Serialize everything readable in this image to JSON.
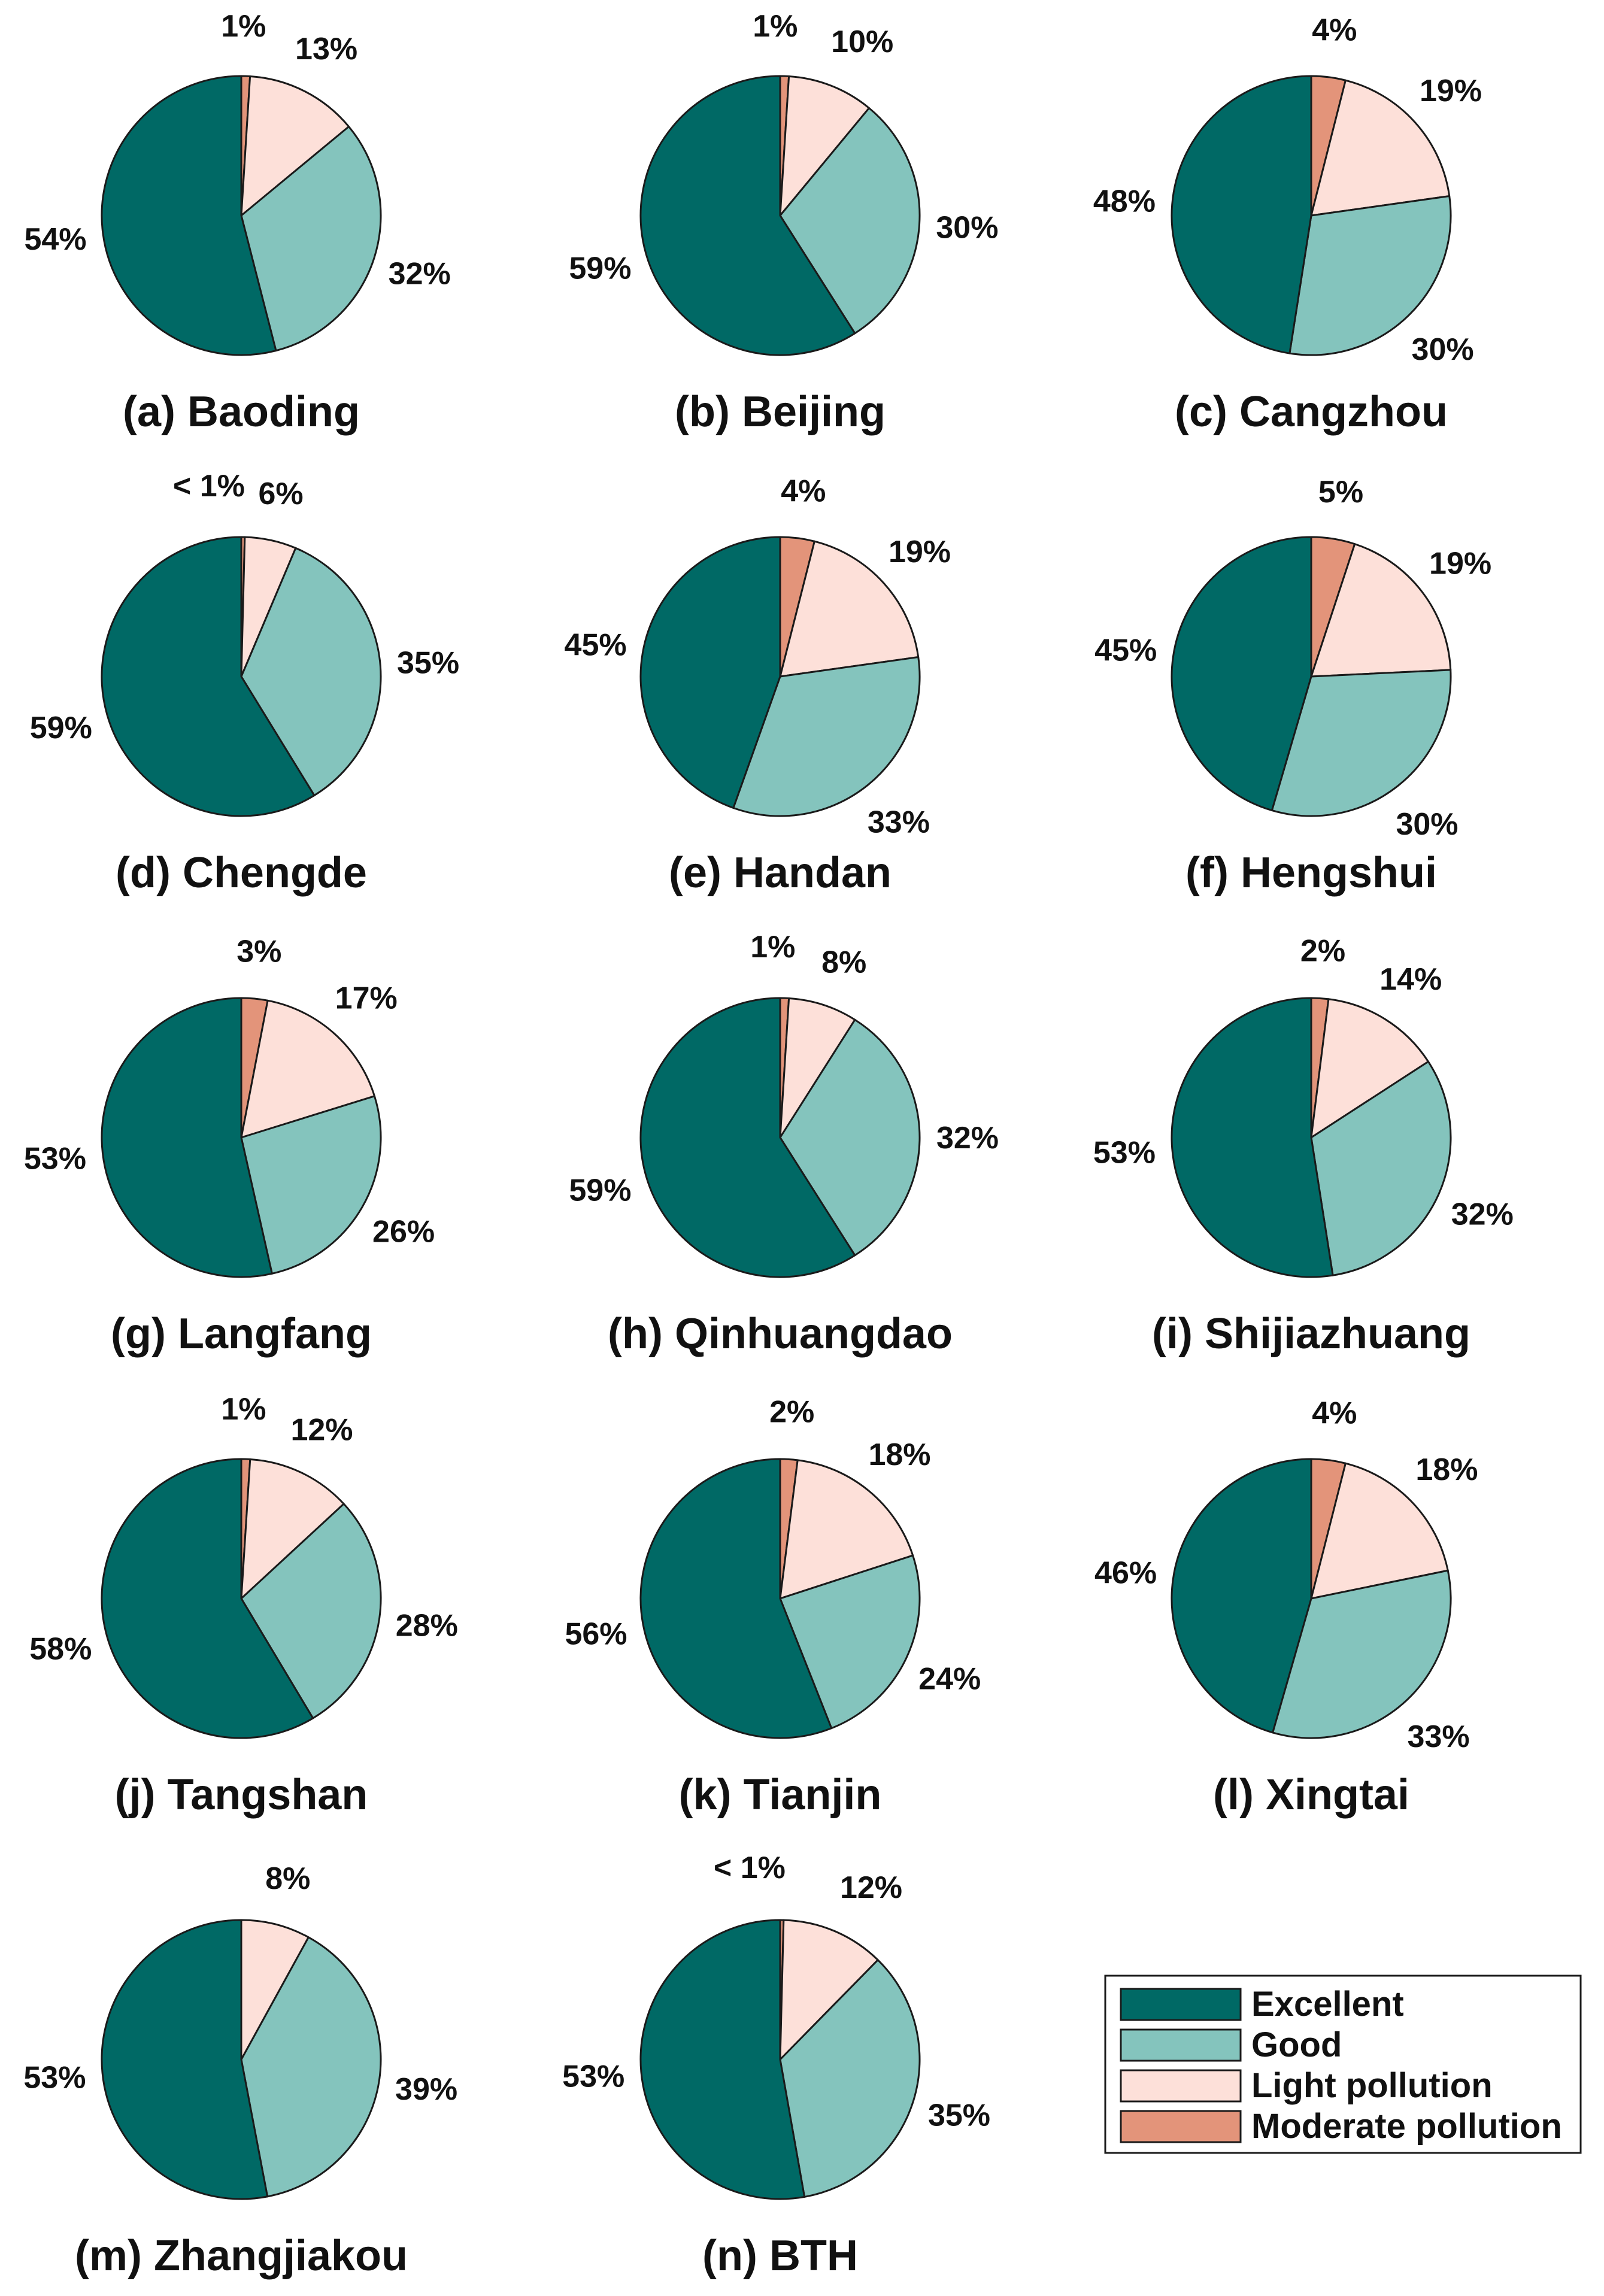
{
  "colors": {
    "excellent": "#006965",
    "good": "#84c4bd",
    "light_pollution": "#fde0d9",
    "moderate_pollution": "#e3947a",
    "outline": "#1a1a1a"
  },
  "legend": {
    "position": "bottom-right",
    "items": [
      {
        "label": "Excellent",
        "color_key": "excellent"
      },
      {
        "label": "Good",
        "color_key": "good"
      },
      {
        "label": "Light pollution",
        "color_key": "light_pollution"
      },
      {
        "label": "Moderate pollution",
        "color_key": "moderate_pollution"
      }
    ]
  },
  "chart_data": [
    {
      "type": "pie",
      "title": "(a) Baoding",
      "slices": [
        {
          "category": "Moderate pollution",
          "value": 1,
          "label": "1%"
        },
        {
          "category": "Light pollution",
          "value": 13,
          "label": "13%"
        },
        {
          "category": "Good",
          "value": 32,
          "label": "32%"
        },
        {
          "category": "Excellent",
          "value": 54,
          "label": "54%"
        }
      ]
    },
    {
      "type": "pie",
      "title": "(b) Beijing",
      "slices": [
        {
          "category": "Moderate pollution",
          "value": 1,
          "label": "1%"
        },
        {
          "category": "Light pollution",
          "value": 10,
          "label": "10%"
        },
        {
          "category": "Good",
          "value": 30,
          "label": "30%"
        },
        {
          "category": "Excellent",
          "value": 59,
          "label": "59%"
        }
      ]
    },
    {
      "type": "pie",
      "title": "(c) Cangzhou",
      "slices": [
        {
          "category": "Moderate pollution",
          "value": 4,
          "label": "4%"
        },
        {
          "category": "Light pollution",
          "value": 19,
          "label": "19%"
        },
        {
          "category": "Good",
          "value": 30,
          "label": "30%"
        },
        {
          "category": "Excellent",
          "value": 48,
          "label": "48%"
        }
      ]
    },
    {
      "type": "pie",
      "title": "(d) Chengde",
      "slices": [
        {
          "category": "Moderate pollution",
          "value": 0.4,
          "label": "< 1%"
        },
        {
          "category": "Light pollution",
          "value": 6,
          "label": "6%"
        },
        {
          "category": "Good",
          "value": 35,
          "label": "35%"
        },
        {
          "category": "Excellent",
          "value": 59,
          "label": "59%"
        }
      ]
    },
    {
      "type": "pie",
      "title": "(e) Handan",
      "slices": [
        {
          "category": "Moderate pollution",
          "value": 4,
          "label": "4%"
        },
        {
          "category": "Light pollution",
          "value": 19,
          "label": "19%"
        },
        {
          "category": "Good",
          "value": 33,
          "label": "33%"
        },
        {
          "category": "Excellent",
          "value": 45,
          "label": "45%"
        }
      ]
    },
    {
      "type": "pie",
      "title": "(f) Hengshui",
      "slices": [
        {
          "category": "Moderate pollution",
          "value": 5,
          "label": "5%"
        },
        {
          "category": "Light pollution",
          "value": 19,
          "label": "19%"
        },
        {
          "category": "Good",
          "value": 30,
          "label": "30%"
        },
        {
          "category": "Excellent",
          "value": 45,
          "label": "45%"
        }
      ]
    },
    {
      "type": "pie",
      "title": "(g) Langfang",
      "slices": [
        {
          "category": "Moderate pollution",
          "value": 3,
          "label": "3%"
        },
        {
          "category": "Light pollution",
          "value": 17,
          "label": "17%"
        },
        {
          "category": "Good",
          "value": 26,
          "label": "26%"
        },
        {
          "category": "Excellent",
          "value": 53,
          "label": "53%"
        }
      ]
    },
    {
      "type": "pie",
      "title": "(h) Qinhuangdao",
      "slices": [
        {
          "category": "Moderate pollution",
          "value": 1,
          "label": "1%"
        },
        {
          "category": "Light pollution",
          "value": 8,
          "label": "8%"
        },
        {
          "category": "Good",
          "value": 32,
          "label": "32%"
        },
        {
          "category": "Excellent",
          "value": 59,
          "label": "59%"
        }
      ]
    },
    {
      "type": "pie",
      "title": "(i) Shijiazhuang",
      "slices": [
        {
          "category": "Moderate pollution",
          "value": 2,
          "label": "2%"
        },
        {
          "category": "Light pollution",
          "value": 14,
          "label": "14%"
        },
        {
          "category": "Good",
          "value": 32,
          "label": "32%"
        },
        {
          "category": "Excellent",
          "value": 53,
          "label": "53%"
        }
      ]
    },
    {
      "type": "pie",
      "title": "(j) Tangshan",
      "slices": [
        {
          "category": "Moderate pollution",
          "value": 1,
          "label": "1%"
        },
        {
          "category": "Light pollution",
          "value": 12,
          "label": "12%"
        },
        {
          "category": "Good",
          "value": 28,
          "label": "28%"
        },
        {
          "category": "Excellent",
          "value": 58,
          "label": "58%"
        }
      ]
    },
    {
      "type": "pie",
      "title": "(k) Tianjin",
      "slices": [
        {
          "category": "Moderate pollution",
          "value": 2,
          "label": "2%"
        },
        {
          "category": "Light pollution",
          "value": 18,
          "label": "18%"
        },
        {
          "category": "Good",
          "value": 24,
          "label": "24%"
        },
        {
          "category": "Excellent",
          "value": 56,
          "label": "56%"
        }
      ]
    },
    {
      "type": "pie",
      "title": "(l) Xingtai",
      "slices": [
        {
          "category": "Moderate pollution",
          "value": 4,
          "label": "4%"
        },
        {
          "category": "Light pollution",
          "value": 18,
          "label": "18%"
        },
        {
          "category": "Good",
          "value": 33,
          "label": "33%"
        },
        {
          "category": "Excellent",
          "value": 46,
          "label": "46%"
        }
      ]
    },
    {
      "type": "pie",
      "title": "(m) Zhangjiakou",
      "slices": [
        {
          "category": "Light pollution",
          "value": 8,
          "label": "8%"
        },
        {
          "category": "Good",
          "value": 39,
          "label": "39%"
        },
        {
          "category": "Excellent",
          "value": 53,
          "label": "53%"
        }
      ]
    },
    {
      "type": "pie",
      "title": "(n) BTH",
      "slices": [
        {
          "category": "Moderate pollution",
          "value": 0.4,
          "label": "< 1%"
        },
        {
          "category": "Light pollution",
          "value": 12,
          "label": "12%"
        },
        {
          "category": "Good",
          "value": 35,
          "label": "35%"
        },
        {
          "category": "Excellent",
          "value": 53,
          "label": "53%"
        }
      ]
    }
  ]
}
